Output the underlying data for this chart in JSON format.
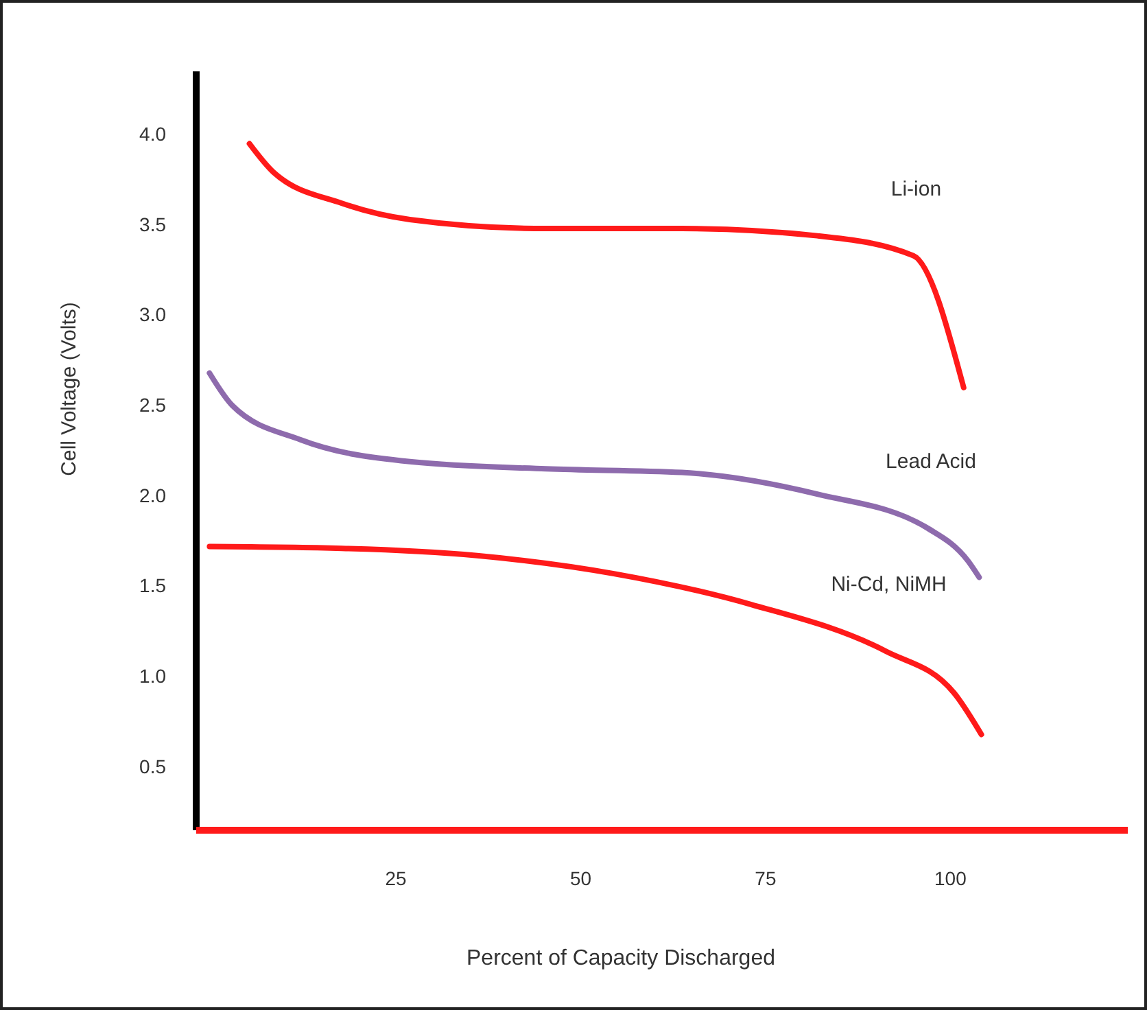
{
  "chart_data": {
    "type": "line",
    "xlabel": "Percent of Capacity Discharged",
    "ylabel": "Cell Voltage (Volts)",
    "xlim": [
      -2,
      124
    ],
    "xticks": [
      25,
      50,
      75,
      100
    ],
    "ylim": [
      0.15,
      4.35
    ],
    "yticks": [
      {
        "value": 0.5,
        "label": "0.5"
      },
      {
        "value": 1,
        "label": "1.0"
      },
      {
        "value": 1.5,
        "label": "1.5"
      },
      {
        "value": 2,
        "label": "2.0"
      },
      {
        "value": 2.5,
        "label": "2.5"
      },
      {
        "value": 3,
        "label": "3.0"
      },
      {
        "value": 3.5,
        "label": "3.5"
      },
      {
        "value": 4,
        "label": "4.0"
      }
    ],
    "grid": false,
    "legend": false,
    "marker": "none",
    "line_style": "solid",
    "series": [
      {
        "name": "Li-ion",
        "color": "#ff1a1a",
        "x": [
          5.2,
          8.5,
          17.7,
          26.9,
          45.3,
          63.7,
          82,
          95,
          101.8
        ],
        "values": [
          3.95,
          3.79,
          3.62,
          3.53,
          3.48,
          3.48,
          3.44,
          3.33,
          2.6
        ]
      },
      {
        "name": "Lead Acid",
        "color": "#8e6bad",
        "x": [
          -0.2,
          2.9,
          12.2,
          26.9,
          45.3,
          63.7,
          82,
          97,
          102.4,
          103.9
        ],
        "values": [
          2.68,
          2.5,
          2.31,
          2.19,
          2.15,
          2.13,
          2.01,
          1.82,
          1.64,
          1.55
        ]
      },
      {
        "name": "Ni-Cd, NiMH",
        "color": "#ff1a1a",
        "x": [
          -0.2,
          17.7,
          36,
          54.5,
          73,
          91.3,
          100.5,
          104.2
        ],
        "values": [
          1.72,
          1.71,
          1.67,
          1.57,
          1.4,
          1.14,
          0.91,
          0.68
        ]
      }
    ]
  }
}
